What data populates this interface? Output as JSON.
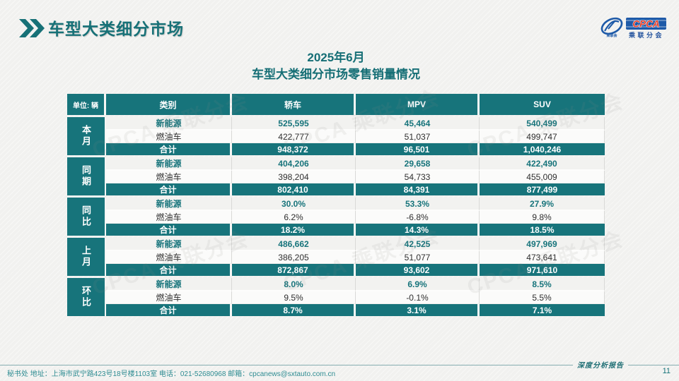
{
  "page": {
    "title": "车型大类细分市场",
    "subtitle_line1": "2025年6月",
    "subtitle_line2": "车型大类细分市场零售销量情况",
    "footer": "秘书处  地址：上海市武宁路423号18号楼1103室  电话：021-52680968   邮箱：cpcanews@sxtauto.com.cn",
    "report_tag": "深度分析报告",
    "page_number": "11"
  },
  "logo": {
    "acronym": "CPCA",
    "name_cn": "乘联分会"
  },
  "colors": {
    "teal": "#17747B",
    "teal_text": "#156E75",
    "logo_blue": "#1E5AA8",
    "logo_red": "#E8402A",
    "background": "#F1F1EF"
  },
  "watermark_text": "CPCA 乘联分会",
  "chart_data": {
    "type": "table",
    "unit_label": "单位: 辆",
    "columns": [
      "类别",
      "轿车",
      "MPV",
      "SUV"
    ],
    "groups": [
      {
        "label": "本月",
        "rows": [
          {
            "name": "新能源",
            "style": "nev",
            "values": [
              "525,595",
              "45,464",
              "540,499"
            ]
          },
          {
            "name": "燃油车",
            "style": "fuel",
            "values": [
              "422,777",
              "51,037",
              "499,747"
            ]
          },
          {
            "name": "合计",
            "style": "total",
            "values": [
              "948,372",
              "96,501",
              "1,040,246"
            ]
          }
        ]
      },
      {
        "label": "同期",
        "rows": [
          {
            "name": "新能源",
            "style": "nev",
            "values": [
              "404,206",
              "29,658",
              "422,490"
            ]
          },
          {
            "name": "燃油车",
            "style": "fuel",
            "values": [
              "398,204",
              "54,733",
              "455,009"
            ]
          },
          {
            "name": "合计",
            "style": "total",
            "values": [
              "802,410",
              "84,391",
              "877,499"
            ]
          }
        ]
      },
      {
        "label": "同比",
        "rows": [
          {
            "name": "新能源",
            "style": "nev",
            "values": [
              "30.0%",
              "53.3%",
              "27.9%"
            ]
          },
          {
            "name": "燃油车",
            "style": "fuel",
            "values": [
              "6.2%",
              "-6.8%",
              "9.8%"
            ]
          },
          {
            "name": "合计",
            "style": "total",
            "values": [
              "18.2%",
              "14.3%",
              "18.5%"
            ]
          }
        ]
      },
      {
        "label": "上月",
        "rows": [
          {
            "name": "新能源",
            "style": "nev",
            "values": [
              "486,662",
              "42,525",
              "497,969"
            ]
          },
          {
            "name": "燃油车",
            "style": "fuel",
            "values": [
              "386,205",
              "51,077",
              "473,641"
            ]
          },
          {
            "name": "合计",
            "style": "total",
            "values": [
              "872,867",
              "93,602",
              "971,610"
            ]
          }
        ]
      },
      {
        "label": "环比",
        "rows": [
          {
            "name": "新能源",
            "style": "nev",
            "values": [
              "8.0%",
              "6.9%",
              "8.5%"
            ]
          },
          {
            "name": "燃油车",
            "style": "fuel",
            "values": [
              "9.5%",
              "-0.1%",
              "5.5%"
            ]
          },
          {
            "name": "合计",
            "style": "total",
            "values": [
              "8.7%",
              "3.1%",
              "7.1%"
            ]
          }
        ]
      }
    ]
  }
}
